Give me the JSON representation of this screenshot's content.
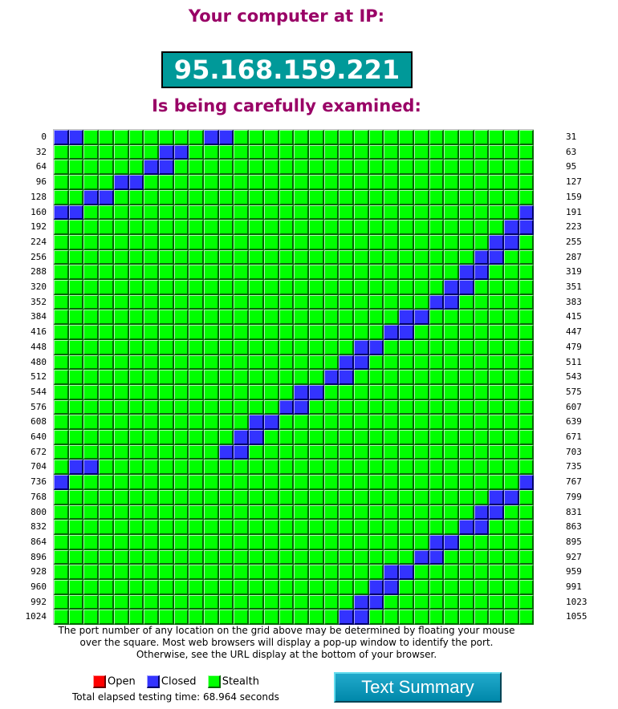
{
  "header": {
    "line1": "Your computer at IP:",
    "ip": "95.168.159.221",
    "line2": "Is being carefully examined:"
  },
  "grid": {
    "columns": 32,
    "rows": 33,
    "first_port": 0,
    "default_status": "stealth",
    "row_left_labels": [
      "0",
      "32",
      "64",
      "96",
      "128",
      "160",
      "192",
      "224",
      "256",
      "288",
      "320",
      "352",
      "384",
      "416",
      "448",
      "480",
      "512",
      "544",
      "576",
      "608",
      "640",
      "672",
      "704",
      "736",
      "768",
      "800",
      "832",
      "864",
      "896",
      "928",
      "960",
      "992",
      "1024"
    ],
    "row_right_labels": [
      "31",
      "63",
      "95",
      "127",
      "159",
      "191",
      "223",
      "255",
      "287",
      "319",
      "351",
      "383",
      "415",
      "447",
      "479",
      "511",
      "543",
      "575",
      "607",
      "639",
      "671",
      "703",
      "735",
      "767",
      "799",
      "831",
      "863",
      "895",
      "927",
      "959",
      "991",
      "1023",
      "1055"
    ],
    "closed_ports": [
      0,
      1,
      10,
      11,
      39,
      40,
      70,
      71,
      100,
      101,
      130,
      131,
      160,
      161,
      191,
      222,
      223,
      253,
      254,
      284,
      285,
      315,
      316,
      346,
      347,
      377,
      378,
      407,
      408,
      438,
      439,
      468,
      469,
      499,
      500,
      530,
      531,
      560,
      561,
      591,
      592,
      621,
      622,
      652,
      653,
      683,
      684,
      705,
      706,
      736,
      767,
      797,
      798,
      828,
      829,
      859,
      860,
      889,
      890,
      920,
      921,
      950,
      951,
      981,
      982,
      1012,
      1013,
      1043,
      1044
    ]
  },
  "explanation": "The port number of any location on the grid above may be determined by floating your mouse over the square. Most web browsers will display a pop-up window to identify the port. Otherwise, see the URL display at the bottom of your browser.",
  "legend": {
    "open": "Open",
    "closed": "Closed",
    "stealth": "Stealth"
  },
  "colors": {
    "heading": "#990066",
    "ip_box": "#009999",
    "stealth": "#00ff00",
    "closed": "#3333ff",
    "open": "#ff0000",
    "button": "#0099bb"
  },
  "elapsed": "Total elapsed testing time: 68.964 seconds",
  "button": {
    "label": "Text Summary"
  }
}
